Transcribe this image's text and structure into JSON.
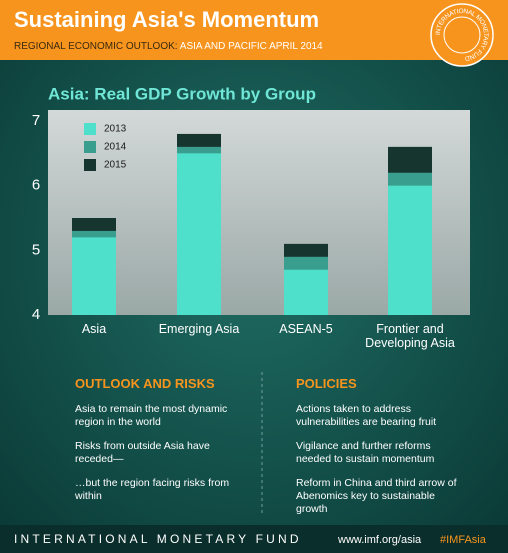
{
  "header": {
    "title": "Sustaining Asia's Momentum",
    "subtitle_label": "REGIONAL ECONOMIC OUTLOOK:",
    "subtitle_text": "ASIA AND PACIFIC APRIL 2014"
  },
  "chart_data": {
    "type": "bar",
    "title": "Asia: Real GDP Growth by Group",
    "categories": [
      "Asia",
      "Emerging Asia",
      "ASEAN-5",
      "Frontier and Developing Asia"
    ],
    "series": [
      {
        "name": "2013",
        "color": "#4fe0cc",
        "values": [
          5.2,
          6.5,
          4.7,
          6.0
        ]
      },
      {
        "name": "2014",
        "color": "#3a9e8f",
        "values": [
          5.3,
          6.6,
          4.9,
          6.2
        ]
      },
      {
        "name": "2015",
        "color": "#17352f",
        "values": [
          5.5,
          6.8,
          5.1,
          6.6
        ]
      }
    ],
    "ylim": [
      4,
      7
    ],
    "yticks": [
      4,
      5,
      6,
      7
    ],
    "legend": "upper left"
  },
  "outlook": {
    "heading": "OUTLOOK AND RISKS",
    "items": [
      "Asia to remain the most dynamic region in the world",
      "Risks from outside Asia have receded—",
      "…but the region facing risks from within"
    ]
  },
  "policies": {
    "heading": "POLICIES",
    "items": [
      "Actions taken to address vulnerabilities are bearing fruit",
      "Vigilance and further reforms needed to sustain momentum",
      "Reform in China and third arrow of Abenomics key to sustainable growth"
    ]
  },
  "footer": {
    "name": "INTERNATIONAL MONETARY FUND",
    "url": "www.imf.org/asia",
    "hashtag": "#IMFAsia"
  }
}
